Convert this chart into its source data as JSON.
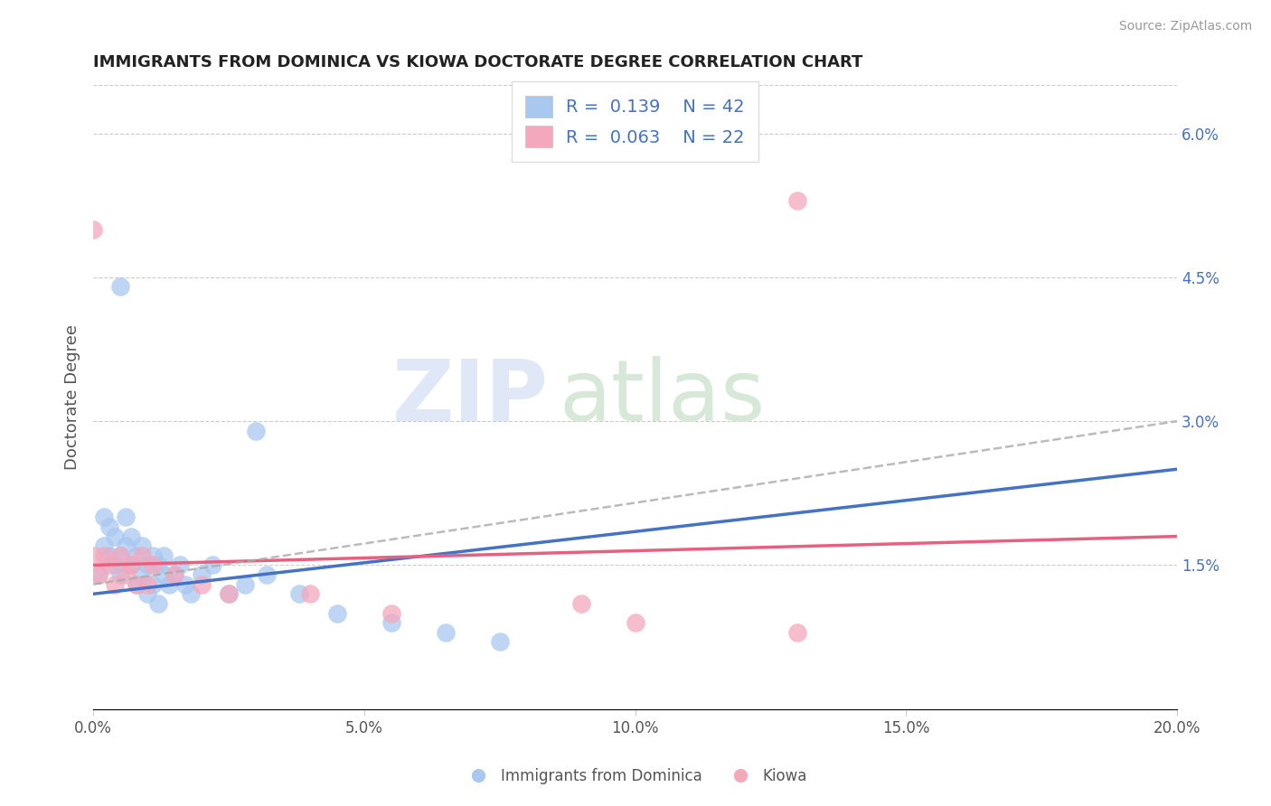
{
  "title": "IMMIGRANTS FROM DOMINICA VS KIOWA DOCTORATE DEGREE CORRELATION CHART",
  "source_text": "Source: ZipAtlas.com",
  "ylabel": "Doctorate Degree",
  "xlim": [
    0.0,
    0.2
  ],
  "ylim": [
    0.0,
    0.065
  ],
  "xticks": [
    0.0,
    0.05,
    0.1,
    0.15,
    0.2
  ],
  "xtick_labels": [
    "0.0%",
    "5.0%",
    "10.0%",
    "15.0%",
    "20.0%"
  ],
  "yticks_right": [
    0.015,
    0.03,
    0.045,
    0.06
  ],
  "ytick_labels_right": [
    "1.5%",
    "3.0%",
    "4.5%",
    "6.0%"
  ],
  "legend_labels": [
    "Immigrants from Dominica",
    "Kiowa"
  ],
  "R_blue": 0.139,
  "N_blue": 42,
  "R_pink": 0.063,
  "N_pink": 22,
  "blue_color": "#A8C8F0",
  "pink_color": "#F4A8BC",
  "trend_blue": "#4472C4",
  "trend_pink": "#E86080",
  "trend_dashed": "#AAAAAA",
  "watermark_zip": "ZIP",
  "watermark_atlas": "atlas",
  "blue_scatter_x": [
    0.001,
    0.002,
    0.002,
    0.003,
    0.003,
    0.004,
    0.004,
    0.005,
    0.005,
    0.006,
    0.006,
    0.007,
    0.007,
    0.008,
    0.008,
    0.009,
    0.009,
    0.01,
    0.01,
    0.011,
    0.011,
    0.012,
    0.012,
    0.013,
    0.013,
    0.014,
    0.015,
    0.016,
    0.017,
    0.018,
    0.02,
    0.022,
    0.025,
    0.028,
    0.032,
    0.038,
    0.045,
    0.055,
    0.065,
    0.075,
    0.005,
    0.03
  ],
  "blue_scatter_y": [
    0.014,
    0.017,
    0.02,
    0.016,
    0.019,
    0.015,
    0.018,
    0.016,
    0.014,
    0.017,
    0.02,
    0.018,
    0.015,
    0.016,
    0.013,
    0.017,
    0.014,
    0.015,
    0.012,
    0.016,
    0.013,
    0.015,
    0.011,
    0.014,
    0.016,
    0.013,
    0.014,
    0.015,
    0.013,
    0.012,
    0.014,
    0.015,
    0.012,
    0.013,
    0.014,
    0.012,
    0.01,
    0.009,
    0.008,
    0.007,
    0.044,
    0.029
  ],
  "pink_scatter_x": [
    0.0,
    0.001,
    0.002,
    0.003,
    0.004,
    0.005,
    0.006,
    0.007,
    0.008,
    0.009,
    0.01,
    0.011,
    0.015,
    0.02,
    0.025,
    0.04,
    0.055,
    0.09,
    0.1,
    0.13,
    0.0,
    0.13
  ],
  "pink_scatter_y": [
    0.016,
    0.014,
    0.016,
    0.015,
    0.013,
    0.016,
    0.014,
    0.015,
    0.013,
    0.016,
    0.013,
    0.015,
    0.014,
    0.013,
    0.012,
    0.012,
    0.01,
    0.011,
    0.009,
    0.008,
    0.05,
    0.053
  ],
  "trend_blue_x0": 0.0,
  "trend_blue_y0": 0.012,
  "trend_blue_x1": 0.2,
  "trend_blue_y1": 0.025,
  "trend_pink_x0": 0.0,
  "trend_pink_y0": 0.015,
  "trend_pink_x1": 0.2,
  "trend_pink_y1": 0.018,
  "trend_dash_x0": 0.0,
  "trend_dash_y0": 0.013,
  "trend_dash_x1": 0.2,
  "trend_dash_y1": 0.03
}
